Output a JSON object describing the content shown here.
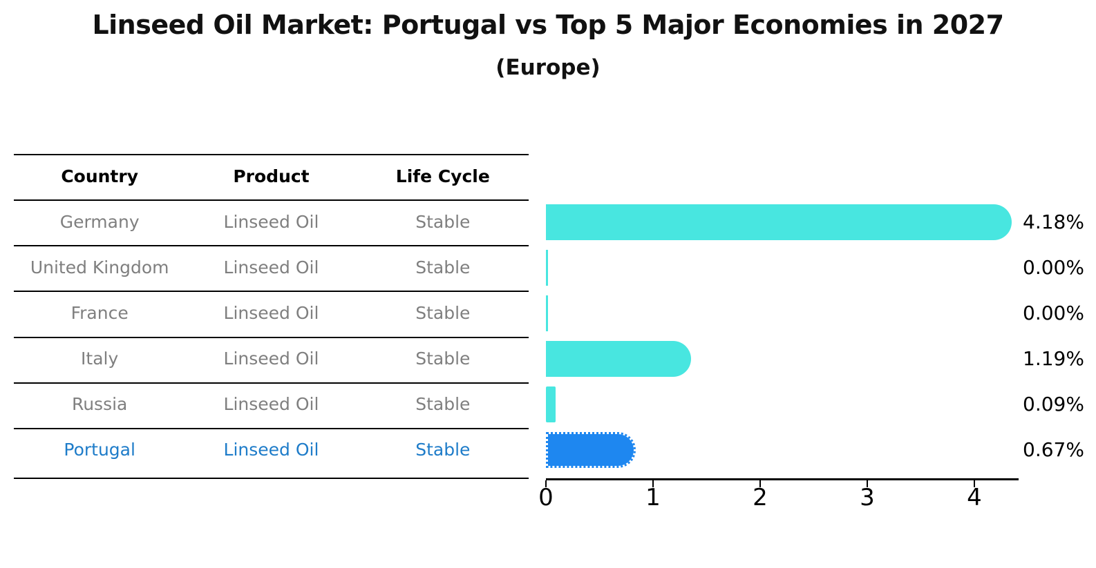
{
  "title": "Linseed Oil Market: Portugal vs Top 5 Major Economies in 2027",
  "subtitle": "(Europe)",
  "table": {
    "headers": [
      "Country",
      "Product",
      "Life Cycle"
    ],
    "rows": [
      {
        "country": "Germany",
        "product": "Linseed Oil",
        "life_cycle": "Stable",
        "highlight": false
      },
      {
        "country": "United Kingdom",
        "product": "Linseed Oil",
        "life_cycle": "Stable",
        "highlight": false
      },
      {
        "country": "France",
        "product": "Linseed Oil",
        "life_cycle": "Stable",
        "highlight": false
      },
      {
        "country": "Italy",
        "product": "Linseed Oil",
        "life_cycle": "Stable",
        "highlight": false
      },
      {
        "country": "Russia",
        "product": "Linseed Oil",
        "life_cycle": "Stable",
        "highlight": false
      },
      {
        "country": "Portugal",
        "product": "Linseed Oil",
        "life_cycle": "Stable",
        "highlight": true
      }
    ]
  },
  "chart_data": {
    "type": "bar",
    "orientation": "horizontal",
    "categories": [
      "Germany",
      "United Kingdom",
      "France",
      "Italy",
      "Russia",
      "Portugal"
    ],
    "values": [
      4.18,
      0.0,
      0.0,
      1.19,
      0.09,
      0.67
    ],
    "value_labels": [
      "4.18%",
      "0.00%",
      "0.00%",
      "1.19%",
      "0.09%",
      "0.67%"
    ],
    "x_ticks": [
      "0",
      "1",
      "2",
      "3",
      "4"
    ],
    "xlim": [
      0,
      4.4
    ],
    "grid": false,
    "legend": "none",
    "highlight_index": 5,
    "bar_color": "#48E6E0",
    "highlight_bar_color": "#1E87F0",
    "highlight_text_color": "#1e7cc9",
    "text_color": "#7f7f7f"
  }
}
